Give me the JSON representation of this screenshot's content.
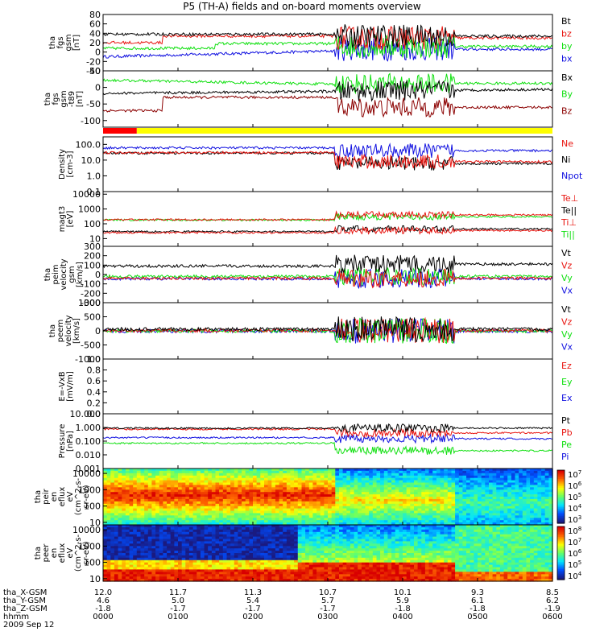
{
  "title": "P5 (TH-A) fields and on-board moments overview",
  "date_label": "2009 Sep 12",
  "colors": {
    "black": "#000000",
    "red": "#e8140f",
    "green": "#10e010",
    "blue": "#1010e0",
    "darkred": "#8b0000",
    "bar_red": "#ff0000",
    "bar_yellow": "#ffff00"
  },
  "chart_data": {
    "type": "line",
    "x_range_hours": [
      0,
      6
    ],
    "panels": [
      {
        "id": "fgs",
        "ylabel": [
          "tha",
          "fgs",
          "gsm",
          "[nT]"
        ],
        "scale": "linear",
        "ylim": [
          -40,
          80
        ],
        "ticks": [
          "80",
          "60",
          "40",
          "20",
          "0",
          "-20",
          "-40"
        ],
        "tick_values": [
          80,
          60,
          40,
          20,
          0,
          -20,
          -40
        ],
        "series": [
          {
            "name": "Bt",
            "color": "black"
          },
          {
            "name": "bz",
            "color": "red"
          },
          {
            "name": "by",
            "color": "green"
          },
          {
            "name": "bx",
            "color": "blue"
          }
        ]
      },
      {
        "id": "fgs_t89",
        "ylabel": [
          "tha",
          "fgs",
          "gsm",
          "-t89",
          "[nT]"
        ],
        "scale": "linear",
        "ylim": [
          -120,
          50
        ],
        "ticks": [
          "50",
          "0",
          "-50",
          "-100"
        ],
        "tick_values": [
          50,
          0,
          -50,
          -100
        ],
        "series": [
          {
            "name": "Bx",
            "color": "black"
          },
          {
            "name": "By",
            "color": "green"
          },
          {
            "name": "Bz",
            "color": "darkred"
          }
        ]
      },
      {
        "id": "mode_bar",
        "segments": [
          {
            "from": 0,
            "to": 0.45,
            "color": "bar_red"
          },
          {
            "from": 0.45,
            "to": 6,
            "color": "bar_yellow"
          }
        ]
      },
      {
        "id": "density",
        "ylabel": [
          "Density",
          "[cm-3]"
        ],
        "scale": "log",
        "ylim": [
          0.1,
          300
        ],
        "ticks": [
          "100.0",
          "10.0",
          "1.0",
          "0.1"
        ],
        "tick_values": [
          100,
          10,
          1,
          0.1
        ],
        "series": [
          {
            "name": "Ne",
            "color": "red"
          },
          {
            "name": "Ni",
            "color": "black"
          },
          {
            "name": "Npot",
            "color": "blue"
          }
        ]
      },
      {
        "id": "temp",
        "ylabel": [
          "magt3",
          "[eV]"
        ],
        "scale": "log",
        "ylim": [
          3,
          15000
        ],
        "ticks": [
          "10000",
          "1000",
          "100",
          "10"
        ],
        "tick_values": [
          10000,
          1000,
          100,
          10
        ],
        "series": [
          {
            "name": "Te⊥",
            "color": "red"
          },
          {
            "name": "Te||",
            "color": "black"
          },
          {
            "name": "Ti⊥",
            "color": "red"
          },
          {
            "name": "Ti||",
            "color": "green"
          }
        ]
      },
      {
        "id": "peim_v",
        "ylabel": [
          "tha",
          "peim",
          "velocity",
          "gsm",
          "[km/s]"
        ],
        "scale": "linear",
        "ylim": [
          -300,
          300
        ],
        "ticks": [
          "300",
          "200",
          "100",
          "0",
          "-100",
          "-200",
          "-300"
        ],
        "tick_values": [
          300,
          200,
          100,
          0,
          -100,
          -200,
          -300
        ],
        "series": [
          {
            "name": "Vt",
            "color": "black"
          },
          {
            "name": "Vz",
            "color": "red"
          },
          {
            "name": "Vy",
            "color": "green"
          },
          {
            "name": "Vx",
            "color": "blue"
          }
        ]
      },
      {
        "id": "peem_v",
        "ylabel": [
          "tha",
          "peem",
          "velocity",
          "[km/s]"
        ],
        "scale": "linear",
        "ylim": [
          -1000,
          1000
        ],
        "ticks": [
          "1000",
          "500",
          "0",
          "-500",
          "-1000"
        ],
        "tick_values": [
          1000,
          500,
          0,
          -500,
          -1000
        ],
        "series": [
          {
            "name": "Vt",
            "color": "black"
          },
          {
            "name": "Vz",
            "color": "red"
          },
          {
            "name": "Vy",
            "color": "green"
          },
          {
            "name": "Vx",
            "color": "blue"
          }
        ]
      },
      {
        "id": "e_vxb",
        "ylabel": [
          "E=-VxB",
          "[mV/m]"
        ],
        "scale": "linear",
        "ylim": [
          0,
          1
        ],
        "ticks": [
          "1.0",
          "0.8",
          "0.6",
          "0.4",
          "0.2",
          "0.0"
        ],
        "tick_values": [
          1,
          0.8,
          0.6,
          0.4,
          0.2,
          0
        ],
        "series": [
          {
            "name": "Ez",
            "color": "red"
          },
          {
            "name": "Ey",
            "color": "green"
          },
          {
            "name": "Ex",
            "color": "blue"
          }
        ]
      },
      {
        "id": "pressure",
        "ylabel": [
          "Pressure",
          "[nPa]"
        ],
        "scale": "log",
        "ylim": [
          0.001,
          10
        ],
        "ticks": [
          "10.000",
          "1.000",
          "0.100",
          "0.010",
          "0.001"
        ],
        "tick_values": [
          10,
          1,
          0.1,
          0.01,
          0.001
        ],
        "series": [
          {
            "name": "Pt",
            "color": "black"
          },
          {
            "name": "Pb",
            "color": "red"
          },
          {
            "name": "Pe",
            "color": "green"
          },
          {
            "name": "Pi",
            "color": "blue"
          }
        ]
      },
      {
        "id": "peir_spec",
        "type": "heatmap",
        "ylabel": [
          "tha",
          "peir",
          "en",
          "eflux",
          "eV",
          "(cm^2-s-",
          "sr-eV)"
        ],
        "scale": "log",
        "ylim": [
          7,
          20000
        ],
        "ticks": [
          "10000",
          "1000",
          "100",
          "10"
        ],
        "tick_values": [
          10000,
          1000,
          100,
          10
        ],
        "colorbar": [
          "10^7",
          "10^6",
          "10^5",
          "10^4",
          "10^3"
        ]
      },
      {
        "id": "peer_spec",
        "type": "heatmap",
        "ylabel": [
          "tha",
          "peer",
          "en",
          "eflux",
          "eV",
          "(cm^2-s-",
          "sr-eV)"
        ],
        "scale": "log",
        "ylim": [
          7,
          20000
        ],
        "ticks": [
          "10000",
          "1000",
          "100",
          "10"
        ],
        "tick_values": [
          10000,
          1000,
          100,
          10
        ],
        "colorbar": [
          "10^8",
          "10^7",
          "10^6",
          "10^5",
          "10^4"
        ]
      }
    ],
    "x_axis": {
      "rows": [
        {
          "label": "tha_X-GSM",
          "values": [
            "12.0",
            "11.7",
            "11.3",
            "10.7",
            "10.1",
            "9.3",
            "8.5"
          ]
        },
        {
          "label": "tha_Y-GSM",
          "values": [
            "4.6",
            "5.0",
            "5.4",
            "5.7",
            "5.9",
            "6.1",
            "6.2"
          ]
        },
        {
          "label": "tha_Z-GSM",
          "values": [
            "-1.8",
            "-1.7",
            "-1.7",
            "-1.7",
            "-1.8",
            "-1.8",
            "-1.9"
          ]
        },
        {
          "label": "hhmm",
          "values": [
            "0000",
            "0100",
            "0200",
            "0300",
            "0400",
            "0500",
            "0600"
          ]
        }
      ]
    }
  }
}
